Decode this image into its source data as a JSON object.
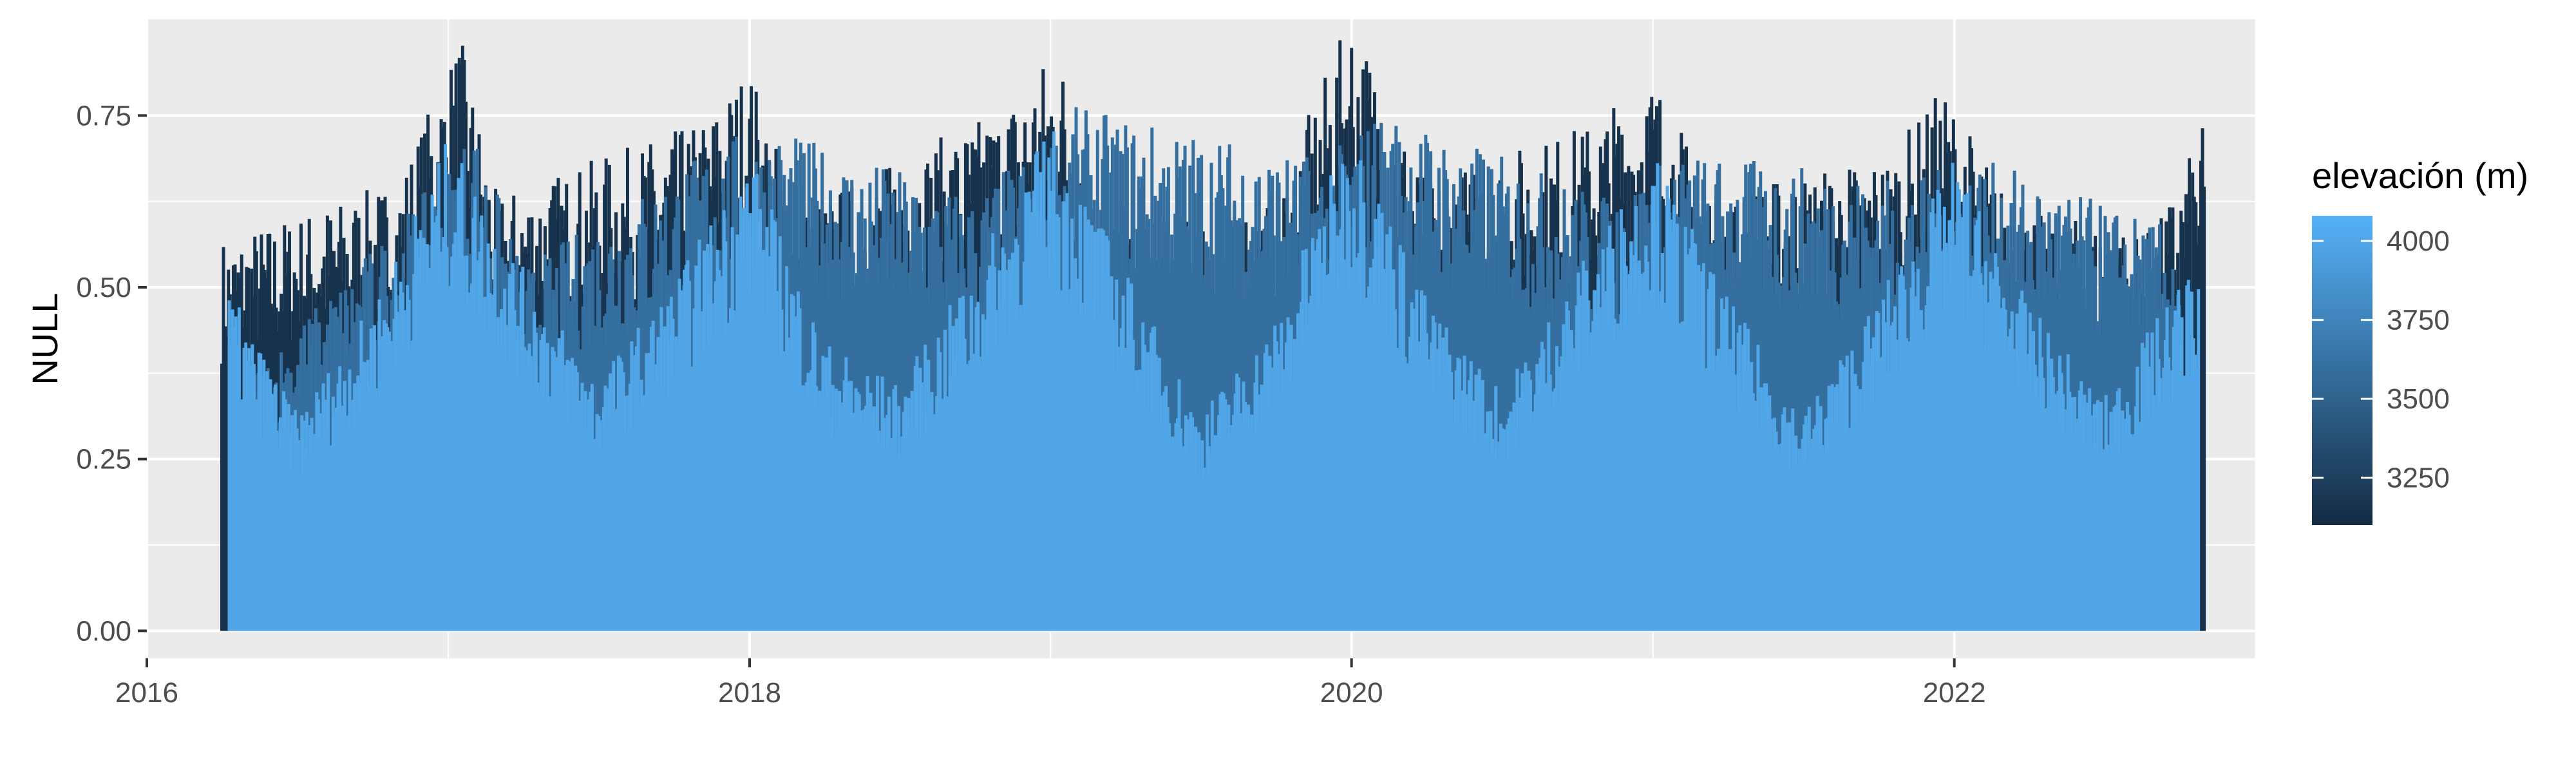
{
  "chart_data": {
    "type": "bar",
    "title": "",
    "xlabel": "",
    "ylabel": "NULL",
    "xlim": [
      "2016-01-01",
      "2023-01-01"
    ],
    "ylim": [
      -0.04,
      0.89
    ],
    "x_ticks": [
      "2016-01-01",
      "2018-01-01",
      "2020-01-01",
      "2022-01-01"
    ],
    "x_tick_labels": [
      "2016",
      "2018",
      "2020",
      "2022"
    ],
    "y_ticks": [
      0,
      0.25,
      0.5,
      0.75
    ],
    "y_tick_labels": [
      "0.00",
      "0.25",
      "0.50",
      "0.75"
    ],
    "grid": true,
    "legend": {
      "title": "elevación (m)",
      "position": "right",
      "type": "colorbar",
      "range": [
        3100,
        4080
      ],
      "ticks": [
        4000,
        3750,
        3500,
        3250
      ],
      "tick_labels": [
        "4000",
        "3750",
        "3500",
        "3250"
      ],
      "color_low": "#132B43",
      "color_high": "#56B1F7"
    },
    "series": [
      {
        "elevation": 3150,
        "x": [
          "2016-04-01",
          "2016-11-01",
          "2017-01-15",
          "2017-03-01",
          "2017-11-01",
          "2018-01-01",
          "2018-03-01",
          "2018-11-01",
          "2019-01-10",
          "2019-03-15",
          "2019-10-01",
          "2020-01-01",
          "2020-04-01",
          "2020-10-15",
          "2021-01-01",
          "2021-03-15",
          "2021-10-15",
          "2021-12-20",
          "2022-03-15",
          "2022-09-01",
          "2022-11-01"
        ],
        "values": [
          0.54,
          0.62,
          0.82,
          0.6,
          0.7,
          0.78,
          0.58,
          0.72,
          0.81,
          0.55,
          0.6,
          0.85,
          0.62,
          0.7,
          0.77,
          0.6,
          0.66,
          0.75,
          0.58,
          0.55,
          0.7
        ]
      },
      {
        "elevation": 3600,
        "x": [
          "2016-05-01",
          "2016-12-01",
          "2017-02-01",
          "2017-04-01",
          "2017-12-01",
          "2018-02-01",
          "2018-10-01",
          "2019-02-01",
          "2019-12-01",
          "2020-02-01",
          "2020-11-01",
          "2021-02-01",
          "2021-11-01",
          "2022-02-01",
          "2022-10-01"
        ],
        "values": [
          0.35,
          0.6,
          0.7,
          0.5,
          0.68,
          0.69,
          0.6,
          0.72,
          0.65,
          0.72,
          0.6,
          0.66,
          0.62,
          0.65,
          0.55
        ]
      },
      {
        "elevation": 4000,
        "x": [
          "2016-04-10",
          "2016-07-01",
          "2016-10-01",
          "2017-01-01",
          "2017-04-01",
          "2017-07-01",
          "2017-10-01",
          "2018-01-01",
          "2018-04-01",
          "2018-07-01",
          "2018-10-01",
          "2019-01-01",
          "2019-04-01",
          "2019-07-01",
          "2019-10-01",
          "2020-01-01",
          "2020-04-01",
          "2020-07-01",
          "2020-10-01",
          "2021-01-01",
          "2021-04-01",
          "2021-07-01",
          "2021-10-01",
          "2022-01-01",
          "2022-04-01",
          "2022-07-01",
          "2022-10-25"
        ],
        "values": [
          0.47,
          0.3,
          0.45,
          0.68,
          0.5,
          0.35,
          0.48,
          0.66,
          0.4,
          0.34,
          0.5,
          0.7,
          0.5,
          0.3,
          0.43,
          0.7,
          0.46,
          0.33,
          0.5,
          0.66,
          0.46,
          0.3,
          0.46,
          0.65,
          0.45,
          0.32,
          0.52
        ]
      }
    ]
  }
}
